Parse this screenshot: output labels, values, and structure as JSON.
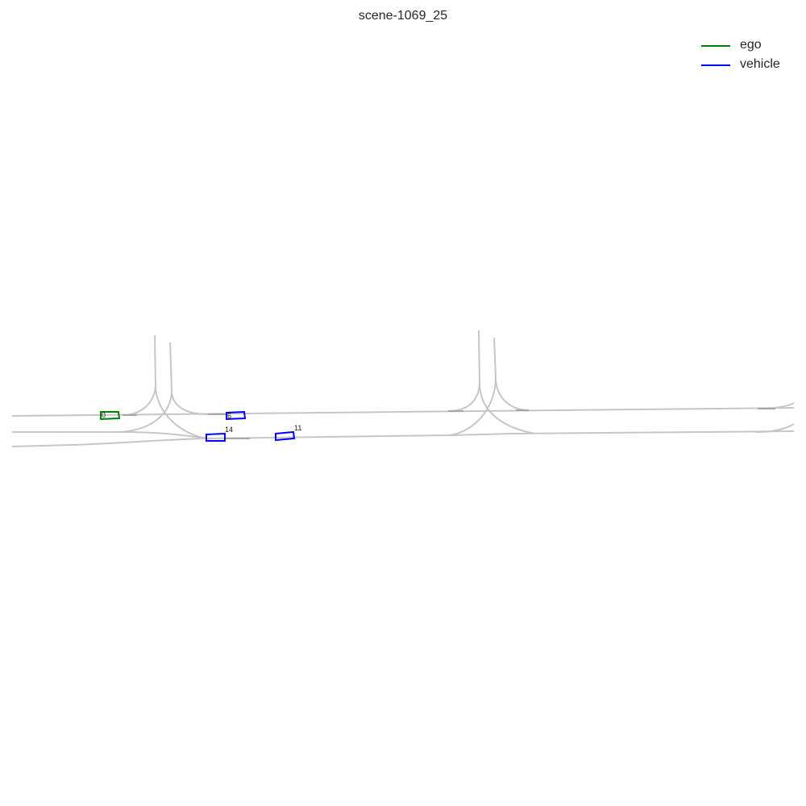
{
  "title": "scene-1069_25",
  "legend": [
    {
      "label": "ego",
      "color": "#008000"
    },
    {
      "label": "vehicle",
      "color": "#0000ff"
    }
  ],
  "agents": [
    {
      "id": "0",
      "type": "ego",
      "color": "#008000"
    },
    {
      "id": "6",
      "type": "vehicle",
      "color": "#0000ff"
    },
    {
      "id": "14",
      "type": "vehicle",
      "color": "#0000ff"
    },
    {
      "id": "11",
      "type": "vehicle",
      "color": "#0000ff"
    }
  ]
}
